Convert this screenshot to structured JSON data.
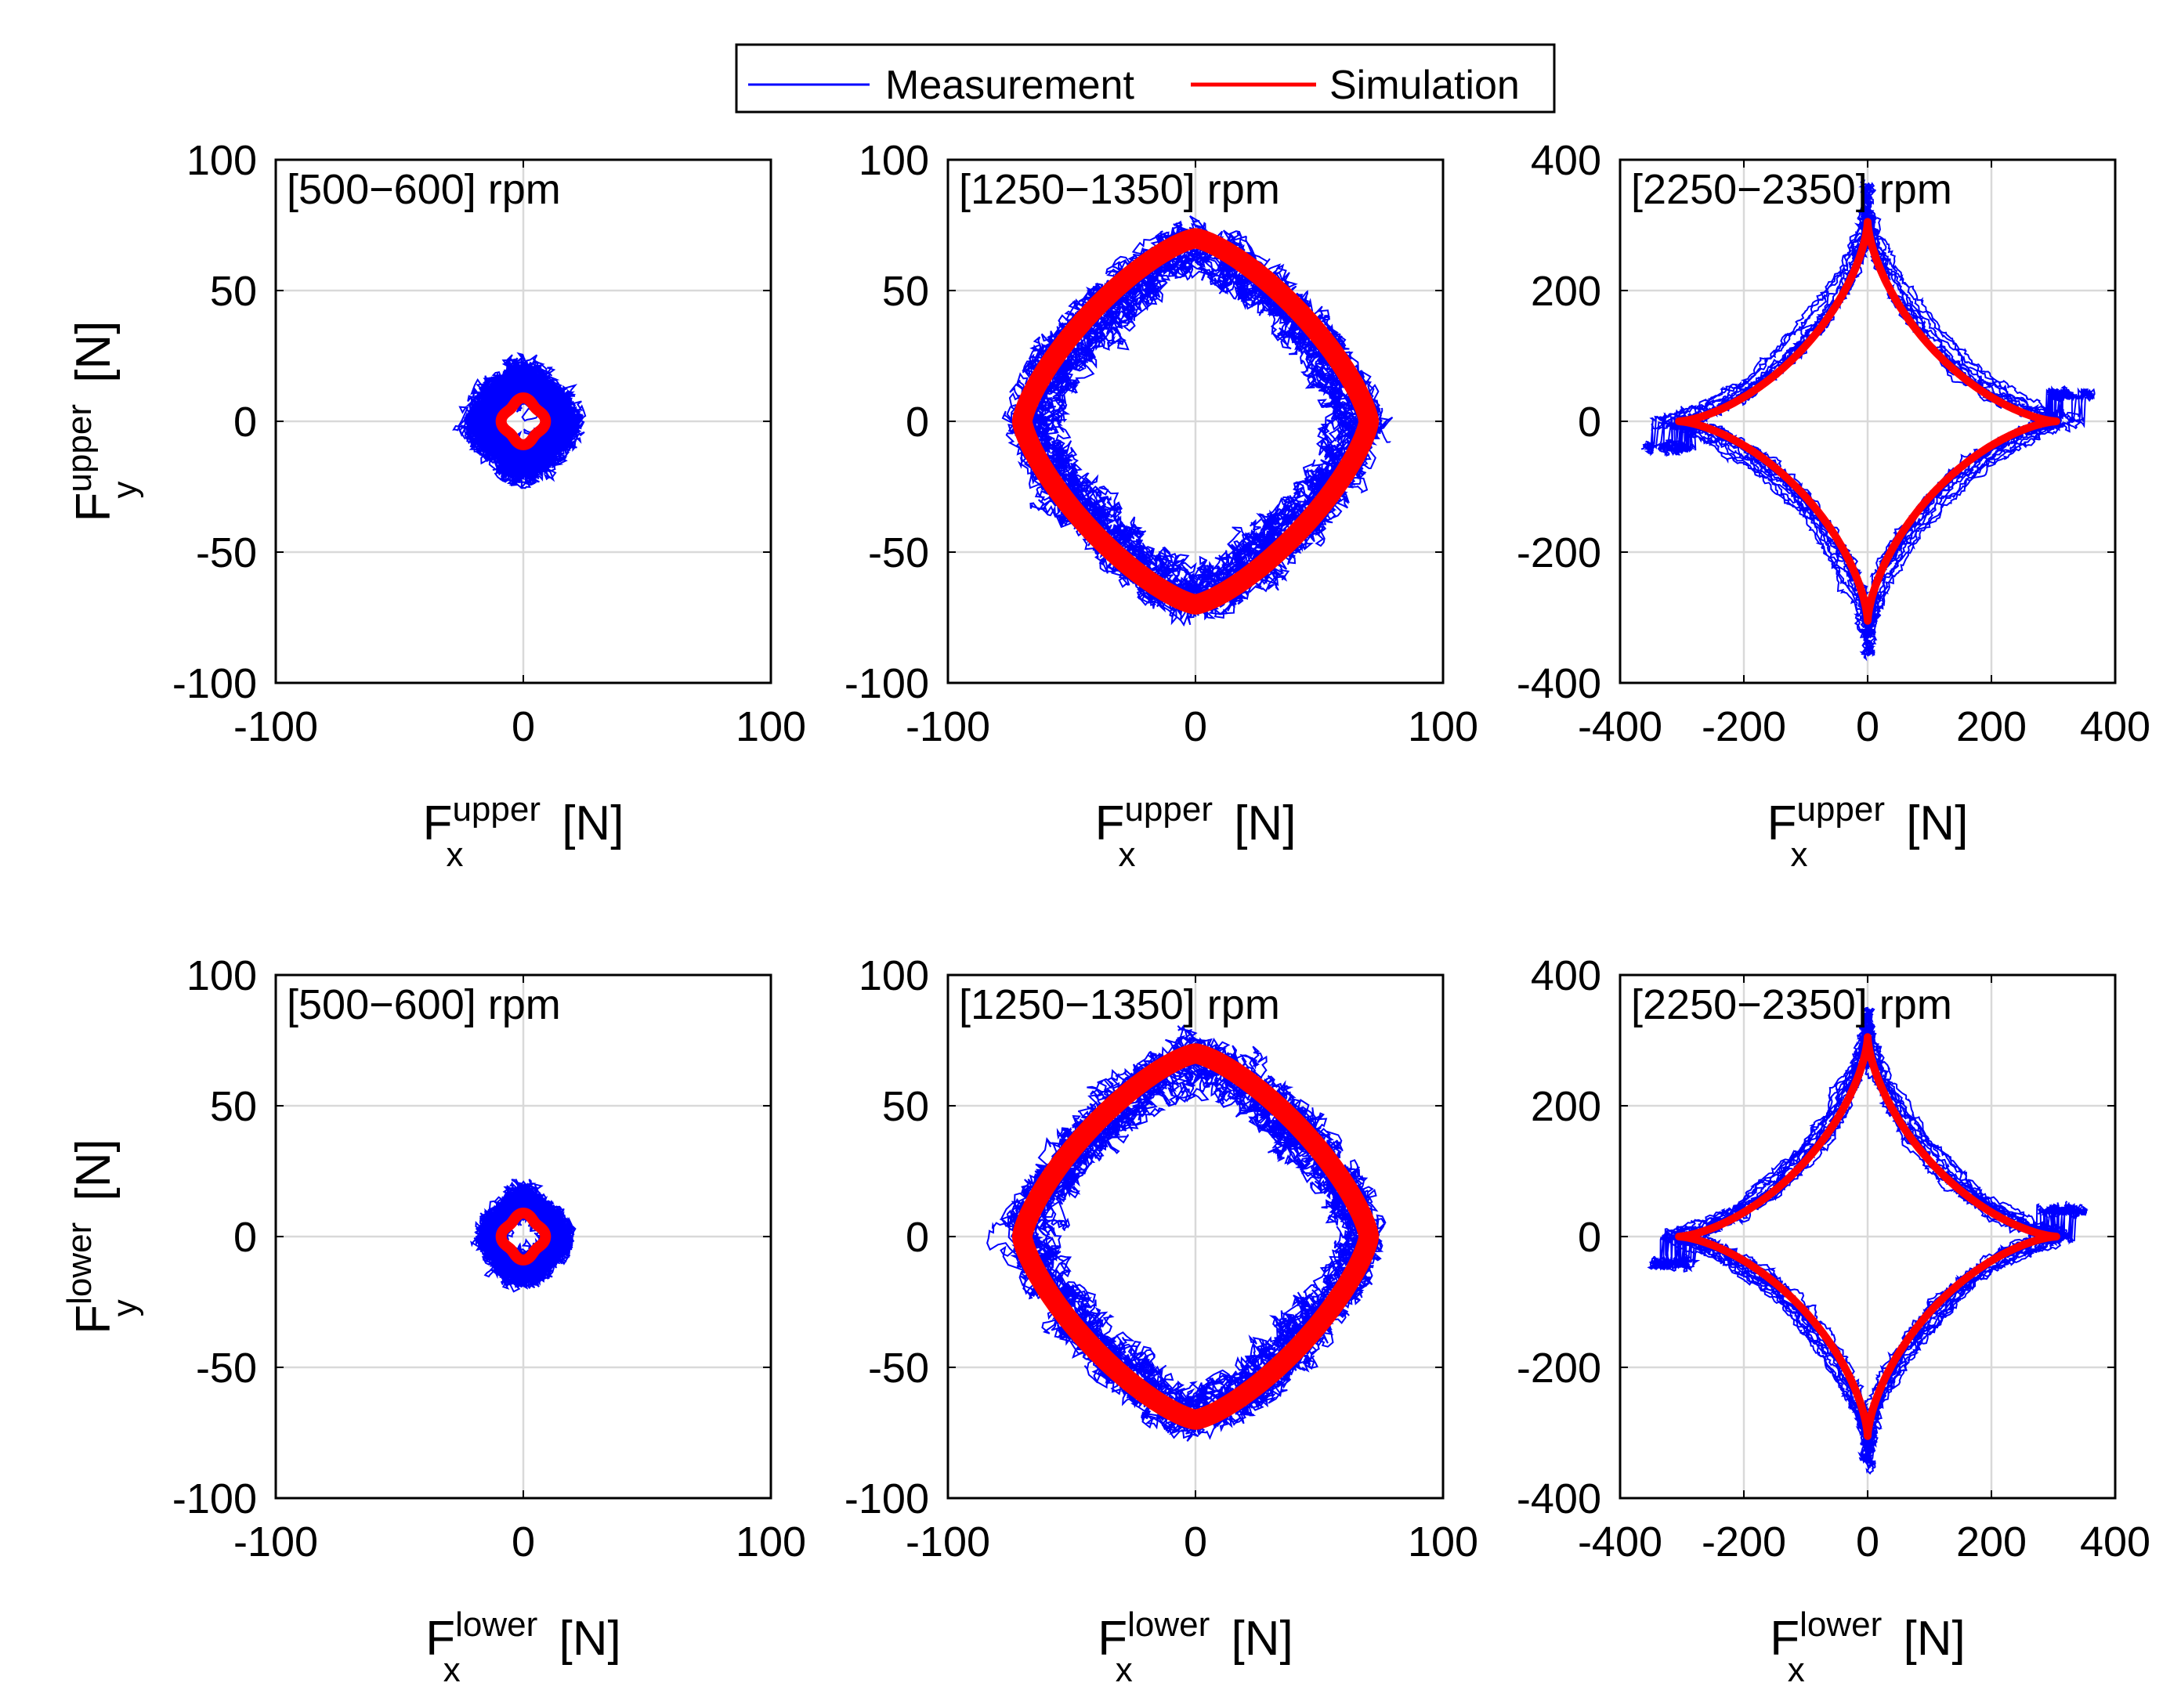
{
  "legend": {
    "entries": [
      {
        "label": "Measurement",
        "color": "#0000ff"
      },
      {
        "label": "Simulation",
        "color": "#ff0000"
      }
    ]
  },
  "chart_data": [
    {
      "type": "scatter",
      "title": "[500−600] rpm",
      "xlabel": {
        "base": "F",
        "sub": "x",
        "sup": "upper",
        "unit": "[N]"
      },
      "ylabel": {
        "base": "F",
        "sub": "y",
        "sup": "upper",
        "unit": "[N]"
      },
      "xlim": [
        -100,
        100
      ],
      "ylim": [
        -100,
        100
      ],
      "xticks": [
        -100,
        0,
        100
      ],
      "yticks": [
        -100,
        -50,
        0,
        50,
        100
      ],
      "xtick_labels": [
        "-100",
        "0",
        "100"
      ],
      "ytick_labels": [
        "-100",
        "-50",
        "0",
        "50",
        "100"
      ],
      "shape": "blob",
      "meas_amp": 15,
      "meas_noise": 8,
      "sim_amp": 8,
      "series": [
        {
          "name": "Measurement",
          "description": "noisy cluster, radius ~15 N"
        },
        {
          "name": "Simulation",
          "description": "small closed loop, radius ~8 N"
        }
      ]
    },
    {
      "type": "scatter",
      "title": "[1250−1350] rpm",
      "xlabel": {
        "base": "F",
        "sub": "x",
        "sup": "upper",
        "unit": "[N]"
      },
      "ylabel": null,
      "xlim": [
        -100,
        100
      ],
      "ylim": [
        -100,
        100
      ],
      "xticks": [
        -100,
        0,
        100
      ],
      "yticks": [
        -100,
        -50,
        0,
        50,
        100
      ],
      "xtick_labels": [
        "-100",
        "0",
        "100"
      ],
      "ytick_labels": [
        "-100",
        "-50",
        "0",
        "50",
        "100"
      ],
      "shape": "diamond",
      "meas_amp": 66,
      "meas_noise": 9,
      "sim_amp": 70,
      "series": [
        {
          "name": "Measurement",
          "description": "rounded diamond, vertices ~+/-65 N"
        },
        {
          "name": "Simulation",
          "description": "rounded diamond, vertices ~+/-70 N"
        }
      ]
    },
    {
      "type": "scatter",
      "title": "[2250−2350] rpm",
      "xlabel": {
        "base": "F",
        "sub": "x",
        "sup": "upper",
        "unit": "[N]"
      },
      "ylabel": null,
      "xlim": [
        -400,
        400
      ],
      "ylim": [
        -400,
        400
      ],
      "xticks": [
        -400,
        -200,
        0,
        200,
        400
      ],
      "yticks": [
        -400,
        -200,
        0,
        200,
        400
      ],
      "xtick_labels": [
        "-400",
        "-200",
        "0",
        "200",
        "400"
      ],
      "ytick_labels": [
        "-400",
        "-200",
        "0",
        "200",
        "400"
      ],
      "shape": "astroid",
      "meas_amp": 330,
      "meas_noise": 12,
      "sim_amp": 305,
      "series": [
        {
          "name": "Measurement",
          "description": "four-cusp astroid, cusps ~+/-330 N"
        },
        {
          "name": "Simulation",
          "description": "four-cusp astroid, cusps ~+/-305 N"
        }
      ]
    },
    {
      "type": "scatter",
      "title": "[500−600] rpm",
      "xlabel": {
        "base": "F",
        "sub": "x",
        "sup": "lower",
        "unit": "[N]"
      },
      "ylabel": {
        "base": "F",
        "sub": "y",
        "sup": "lower",
        "unit": "[N]"
      },
      "xlim": [
        -100,
        100
      ],
      "ylim": [
        -100,
        100
      ],
      "xticks": [
        -100,
        0,
        100
      ],
      "yticks": [
        -100,
        -50,
        0,
        50,
        100
      ],
      "xtick_labels": [
        "-100",
        "0",
        "100"
      ],
      "ytick_labels": [
        "-100",
        "-50",
        "0",
        "50",
        "100"
      ],
      "shape": "blob",
      "meas_amp": 13,
      "meas_noise": 7,
      "sim_amp": 8,
      "series": [
        {
          "name": "Measurement",
          "description": "noisy cluster, radius ~13 N"
        },
        {
          "name": "Simulation",
          "description": "small closed loop, radius ~8 N"
        }
      ]
    },
    {
      "type": "scatter",
      "title": "[1250−1350] rpm",
      "xlabel": {
        "base": "F",
        "sub": "x",
        "sup": "lower",
        "unit": "[N]"
      },
      "ylabel": null,
      "xlim": [
        -100,
        100
      ],
      "ylim": [
        -100,
        100
      ],
      "xticks": [
        -100,
        0,
        100
      ],
      "yticks": [
        -100,
        -50,
        0,
        50,
        100
      ],
      "xtick_labels": [
        "-100",
        "0",
        "100"
      ],
      "ytick_labels": [
        "-100",
        "-50",
        "0",
        "50",
        "100"
      ],
      "shape": "diamond",
      "meas_amp": 67,
      "meas_noise": 9,
      "sim_amp": 70,
      "series": [
        {
          "name": "Measurement",
          "description": "rounded diamond, vertices ~+/-67 N"
        },
        {
          "name": "Simulation",
          "description": "rounded diamond, vertices ~+/-70 N"
        }
      ]
    },
    {
      "type": "scatter",
      "title": "[2250−2350] rpm",
      "xlabel": {
        "base": "F",
        "sub": "x",
        "sup": "lower",
        "unit": "[N]"
      },
      "ylabel": null,
      "xlim": [
        -400,
        400
      ],
      "ylim": [
        -400,
        400
      ],
      "xticks": [
        -400,
        -200,
        0,
        200,
        400
      ],
      "yticks": [
        -400,
        -200,
        0,
        200,
        400
      ],
      "xtick_labels": [
        "-400",
        "-200",
        "0",
        "200",
        "400"
      ],
      "ytick_labels": [
        "-400",
        "-200",
        "0",
        "200",
        "400"
      ],
      "shape": "astroid",
      "meas_amp": 320,
      "meas_noise": 12,
      "sim_amp": 305,
      "series": [
        {
          "name": "Measurement",
          "description": "four-cusp astroid, cusps ~+/-320 N"
        },
        {
          "name": "Simulation",
          "description": "four-cusp astroid, cusps ~+/-305 N"
        }
      ]
    }
  ]
}
